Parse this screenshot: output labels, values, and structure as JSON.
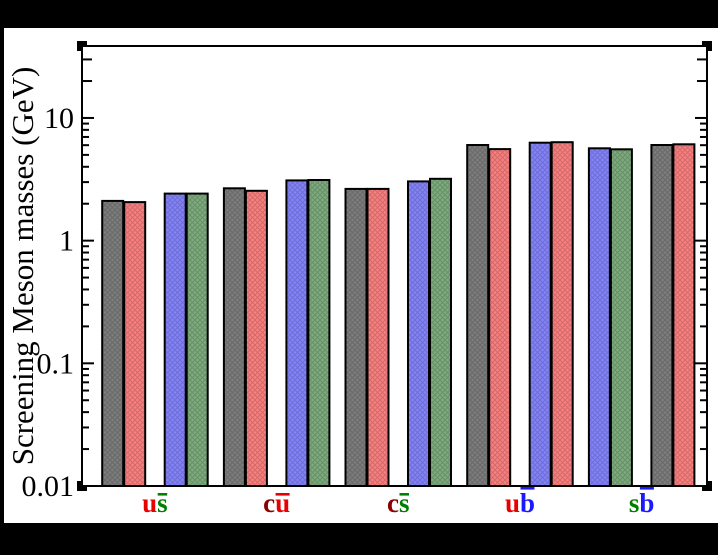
{
  "figure": {
    "background": "#000000",
    "plot_background": "#ffffff",
    "frame_color": "#000000"
  },
  "chart_data": {
    "type": "bar",
    "title": "",
    "xlabel": "",
    "ylabel": "Screening Meson masses (GeV)",
    "y_axis": {
      "scale": "log",
      "min": 0.01,
      "max": 38.6,
      "major_ticks": [
        10,
        1,
        0.1,
        0.01
      ],
      "tick_labels": [
        "10",
        "1",
        "0.1",
        "0.01"
      ],
      "grid": false
    },
    "legend": "none",
    "series_colors": {
      "gray": "#7d7d7d",
      "red": "#fa8080",
      "blue": "#8383fa",
      "green": "#7dab7d"
    },
    "bar_border_color": "#000000",
    "label_colors": {
      "u": "#e60000",
      "s": "#008000",
      "c": "#8b0000",
      "b": "#1a1aff"
    },
    "groups": [
      {
        "name": "us",
        "label": [
          {
            "ch": "u",
            "quark": "u"
          },
          {
            "ch": "s",
            "quark": "s",
            "overbar": true
          }
        ],
        "bars": [
          {
            "color": "gray",
            "value": 2.11
          },
          {
            "color": "red",
            "value": 2.06
          },
          {
            "color": "blue",
            "value": 2.42
          },
          {
            "color": "green",
            "value": 2.42
          }
        ]
      },
      {
        "name": "cu",
        "label": [
          {
            "ch": "c",
            "quark": "c"
          },
          {
            "ch": "u",
            "quark": "u",
            "overbar": true
          }
        ],
        "bars": [
          {
            "color": "gray",
            "value": 2.67
          },
          {
            "color": "red",
            "value": 2.55
          },
          {
            "color": "blue",
            "value": 3.1
          },
          {
            "color": "green",
            "value": 3.12
          }
        ]
      },
      {
        "name": "cs",
        "label": [
          {
            "ch": "c",
            "quark": "c"
          },
          {
            "ch": "s",
            "quark": "s",
            "overbar": true
          }
        ],
        "bars": [
          {
            "color": "gray",
            "value": 2.64
          },
          {
            "color": "red",
            "value": 2.64
          },
          {
            "color": "blue",
            "value": 3.04
          },
          {
            "color": "green",
            "value": 3.19
          }
        ]
      },
      {
        "name": "ub",
        "label": [
          {
            "ch": "u",
            "quark": "u"
          },
          {
            "ch": "b",
            "quark": "b",
            "overbar": true
          }
        ],
        "bars": [
          {
            "color": "gray",
            "value": 6.02
          },
          {
            "color": "red",
            "value": 5.57
          },
          {
            "color": "blue",
            "value": 6.28
          },
          {
            "color": "red",
            "value": 6.35
          }
        ]
      },
      {
        "name": "sb",
        "label": [
          {
            "ch": "s",
            "quark": "s"
          },
          {
            "ch": "b",
            "quark": "b",
            "overbar": true
          }
        ],
        "bars": [
          {
            "color": "blue",
            "value": 5.66
          },
          {
            "color": "green",
            "value": 5.55
          },
          {
            "color": "gray",
            "value": 6.02
          },
          {
            "color": "red",
            "value": 6.1
          }
        ]
      }
    ]
  }
}
